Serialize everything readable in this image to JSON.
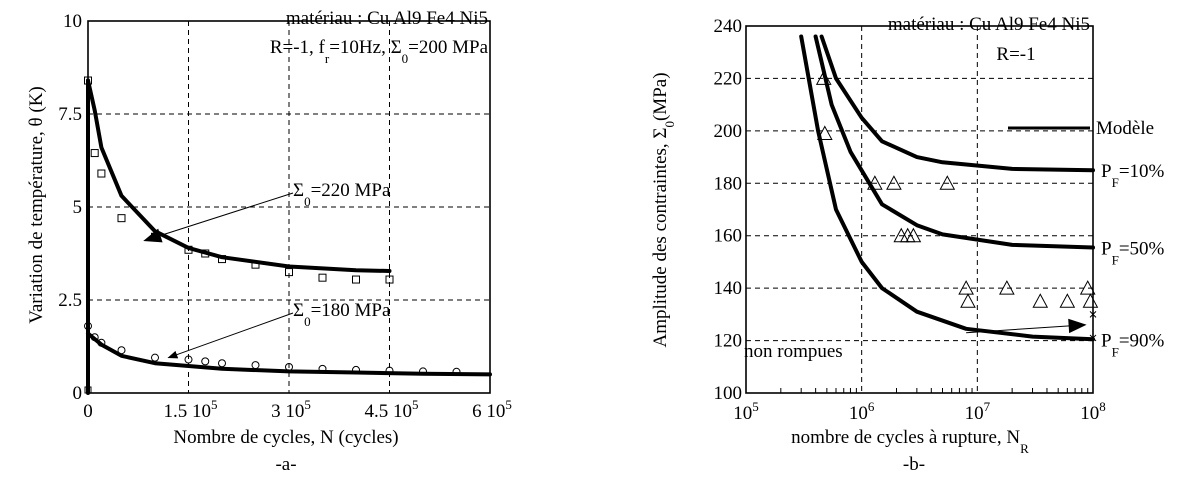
{
  "chart_data": [
    {
      "id": "a",
      "type": "scatter",
      "panel_label": "-a-",
      "xlabel": "Nombre de cycles, N (cycles)",
      "ylabel": "Variation  de température, θ (K)",
      "xlim": [
        0,
        600000
      ],
      "ylim": [
        0,
        10
      ],
      "x_ticks": [
        {
          "v": 0,
          "m": "0",
          "e": ""
        },
        {
          "v": 150000,
          "m": "1.5 10",
          "e": "5"
        },
        {
          "v": 300000,
          "m": "3 10",
          "e": "5"
        },
        {
          "v": 450000,
          "m": "4.5 10",
          "e": "5"
        },
        {
          "v": 600000,
          "m": "6 10",
          "e": "5"
        }
      ],
      "y_ticks": [
        {
          "v": 0,
          "t": "0"
        },
        {
          "v": 2.5,
          "t": "2.5"
        },
        {
          "v": 5,
          "t": "5"
        },
        {
          "v": 7.5,
          "t": "7.5"
        },
        {
          "v": 10,
          "t": "10"
        }
      ],
      "grid": true,
      "info": {
        "line1": "matériau : Cu Al9 Fe4 Ni5",
        "l2_a": "R=-1, f",
        "l2_sub1": "r",
        "l2_b": "=10Hz, Σ",
        "l2_sub2": "0",
        "l2_c": "=200 MPa"
      },
      "series": [
        {
          "marker": "square",
          "points": [
            [
              0,
              8.4
            ],
            [
              10000,
              6.45
            ],
            [
              20000,
              5.9
            ],
            [
              50000,
              4.7
            ],
            [
              100000,
              4.2
            ],
            [
              150000,
              3.85
            ],
            [
              175000,
              3.75
            ],
            [
              200000,
              3.6
            ],
            [
              250000,
              3.45
            ],
            [
              300000,
              3.25
            ],
            [
              350000,
              3.1
            ],
            [
              400000,
              3.05
            ],
            [
              450000,
              3.05
            ]
          ],
          "curve": [
            [
              0,
              8.4
            ],
            [
              10000,
              7.6
            ],
            [
              20000,
              6.6
            ],
            [
              50000,
              5.3
            ],
            [
              100000,
              4.35
            ],
            [
              150000,
              3.9
            ],
            [
              200000,
              3.65
            ],
            [
              300000,
              3.4
            ],
            [
              400000,
              3.3
            ],
            [
              450000,
              3.28
            ]
          ],
          "label_a": "Σ",
          "label_sub": "0",
          "label_b": "=220 MPa",
          "arrow_to": [
            85000,
            4.1
          ]
        },
        {
          "marker": "circle",
          "points": [
            [
              0,
              1.8
            ],
            [
              10000,
              1.5
            ],
            [
              20000,
              1.35
            ],
            [
              50000,
              1.15
            ],
            [
              100000,
              0.95
            ],
            [
              150000,
              0.9
            ],
            [
              175000,
              0.85
            ],
            [
              200000,
              0.8
            ],
            [
              250000,
              0.75
            ],
            [
              300000,
              0.7
            ],
            [
              350000,
              0.65
            ],
            [
              400000,
              0.62
            ],
            [
              450000,
              0.6
            ],
            [
              500000,
              0.58
            ],
            [
              550000,
              0.57
            ]
          ],
          "curve": [
            [
              0,
              1.6
            ],
            [
              20000,
              1.3
            ],
            [
              50000,
              1.0
            ],
            [
              100000,
              0.8
            ],
            [
              200000,
              0.65
            ],
            [
              300000,
              0.58
            ],
            [
              400000,
              0.55
            ],
            [
              500000,
              0.52
            ],
            [
              600000,
              0.5
            ]
          ],
          "label_a": "Σ",
          "label_sub": "0",
          "label_b": "=180 MPa",
          "arrow_to": [
            120000,
            0.95
          ]
        }
      ]
    },
    {
      "id": "b",
      "type": "scatter",
      "panel_label": "-b-",
      "xscale": "log",
      "xlabel_a": "nombre de cycles à rupture, N",
      "xlabel_sub": "R",
      "ylabel_a": "Amplitude des contraintes, Σ",
      "ylabel_sub": "0",
      "ylabel_b": "(MPa)",
      "xlim": [
        100000,
        100000000
      ],
      "ylim": [
        100,
        240
      ],
      "x_ticks": [
        {
          "v": 100000,
          "m": "10",
          "e": "5"
        },
        {
          "v": 1000000,
          "m": "10",
          "e": "6"
        },
        {
          "v": 10000000,
          "m": "10",
          "e": "7"
        },
        {
          "v": 100000000,
          "m": "10",
          "e": "8"
        }
      ],
      "y_ticks": [
        {
          "v": 100,
          "t": "100"
        },
        {
          "v": 120,
          "t": "120"
        },
        {
          "v": 140,
          "t": "140"
        },
        {
          "v": 160,
          "t": "160"
        },
        {
          "v": 180,
          "t": "180"
        },
        {
          "v": 200,
          "t": "200"
        },
        {
          "v": 220,
          "t": "220"
        },
        {
          "v": 240,
          "t": "240"
        }
      ],
      "grid": true,
      "info": {
        "line1": "matériau : Cu Al9 Fe4 Ni5",
        "line2": "R=-1"
      },
      "legend": {
        "label": "Modèle",
        "position": "top-right"
      },
      "curves": [
        {
          "p": "P",
          "sub": "F",
          "rest": "=10%",
          "points": [
            [
              450000,
              236
            ],
            [
              600000,
              220
            ],
            [
              1000000,
              205
            ],
            [
              1500000,
              196
            ],
            [
              3000000,
              190
            ],
            [
              5000000,
              188
            ],
            [
              20000000,
              185.5
            ],
            [
              100000000,
              185
            ]
          ]
        },
        {
          "p": "P",
          "sub": "F",
          "rest": "=50%",
          "points": [
            [
              400000,
              236
            ],
            [
              550000,
              210
            ],
            [
              800000,
              192
            ],
            [
              1500000,
              172
            ],
            [
              3000000,
              164
            ],
            [
              5000000,
              160.5
            ],
            [
              20000000,
              156.5
            ],
            [
              100000000,
              155.5
            ]
          ]
        },
        {
          "p": "P",
          "sub": "F",
          "rest": "=90%",
          "points": [
            [
              300000,
              236
            ],
            [
              420000,
              200
            ],
            [
              600000,
              170
            ],
            [
              1000000,
              150
            ],
            [
              1500000,
              140
            ],
            [
              3000000,
              131
            ],
            [
              8000000,
              124.5
            ],
            [
              30000000,
              121.5
            ],
            [
              100000000,
              120.5
            ]
          ]
        }
      ],
      "triangles": [
        [
          470000,
          220
        ],
        [
          480000,
          199
        ],
        [
          1300000,
          180
        ],
        [
          1900000,
          180
        ],
        [
          5500000,
          180
        ],
        [
          2200000,
          160
        ],
        [
          2500000,
          160
        ],
        [
          2800000,
          160
        ],
        [
          8000000,
          140
        ],
        [
          8300000,
          135
        ],
        [
          18000000,
          140
        ],
        [
          35000000,
          135
        ],
        [
          60000000,
          135
        ],
        [
          90000000,
          140
        ],
        [
          95000000,
          135
        ]
      ],
      "runouts": [
        [
          100000000,
          130
        ],
        [
          100000000,
          121
        ]
      ],
      "annotation": {
        "text": "non rompues",
        "arrow_from": [
          8000000,
          123
        ],
        "arrow_to": [
          85000000,
          126
        ]
      }
    }
  ]
}
